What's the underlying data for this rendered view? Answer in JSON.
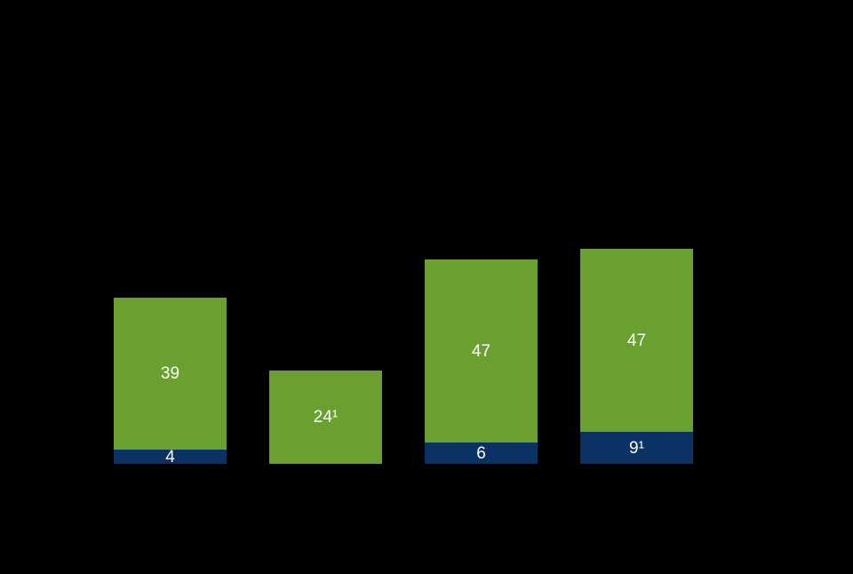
{
  "chart_data": {
    "type": "bar",
    "subtype": "stacked-column",
    "orientation": "vertical",
    "background_color": "#000000",
    "label_color": "#FFFFFF",
    "axes_visible": false,
    "gridlines": false,
    "legend": "none",
    "title": "",
    "categories": [
      "",
      "",
      "",
      ""
    ],
    "series": [
      {
        "name": "green-top-segment",
        "color": "#69A030",
        "values": [
          39,
          24,
          47,
          47
        ],
        "data_labels": [
          "39",
          "24¹",
          "47",
          "47"
        ]
      },
      {
        "name": "navy-bottom-segment",
        "color": "#0B3264",
        "values": [
          4,
          0,
          6,
          9
        ],
        "data_labels": [
          "4",
          "",
          "6",
          "9¹"
        ]
      }
    ]
  }
}
